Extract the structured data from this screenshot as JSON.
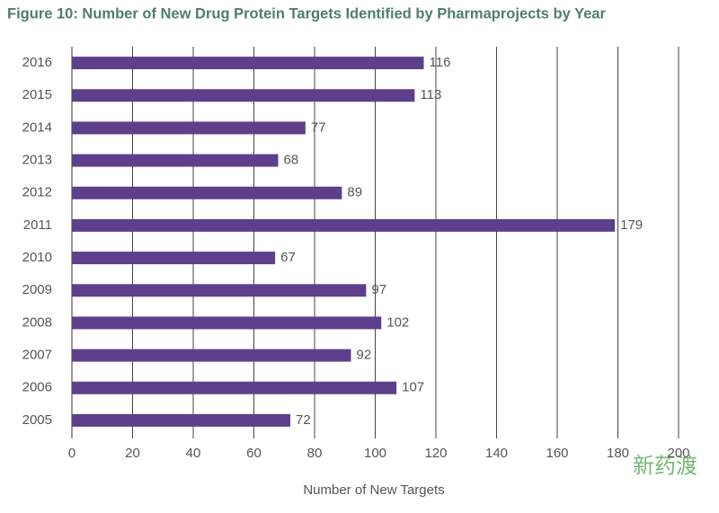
{
  "chart_data": {
    "type": "bar",
    "orientation": "horizontal",
    "title": "Figure 10: Number of New Drug Protein Targets Identified by Pharmaprojects by Year",
    "x_label": "Number of New Targets",
    "categories": [
      "2016",
      "2015",
      "2014",
      "2013",
      "2012",
      "2011",
      "2010",
      "2009",
      "2008",
      "2007",
      "2006",
      "2005"
    ],
    "values": [
      116,
      113,
      77,
      68,
      89,
      179,
      67,
      97,
      102,
      92,
      107,
      72
    ],
    "color": "#5e3f8c",
    "xlim": [
      0,
      200
    ],
    "xticks": [
      0,
      20,
      40,
      60,
      80,
      100,
      120,
      140,
      160,
      180,
      200
    ],
    "grid": true,
    "watermark": "新药渡"
  }
}
